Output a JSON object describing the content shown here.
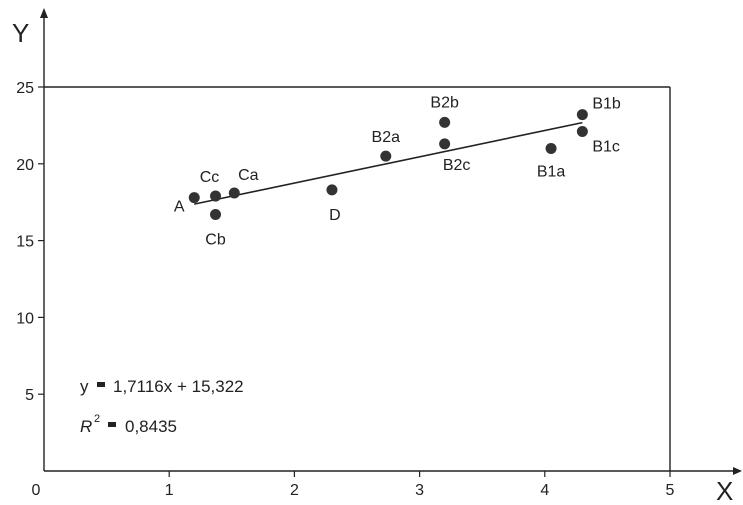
{
  "chart_data": {
    "type": "scatter",
    "xlabel": "X",
    "ylabel": "Y",
    "xlim": [
      0,
      5
    ],
    "ylim": [
      0,
      25
    ],
    "x_ticks": [
      "0",
      "1",
      "2",
      "3",
      "4",
      "5"
    ],
    "y_ticks": [
      "5",
      "10",
      "15",
      "20",
      "25"
    ],
    "grid": false,
    "points": [
      {
        "label": "A",
        "x": 1.2,
        "y": 17.8
      },
      {
        "label": "Cc",
        "x": 1.37,
        "y": 17.9
      },
      {
        "label": "Ca",
        "x": 1.52,
        "y": 18.1
      },
      {
        "label": "Cb",
        "x": 1.37,
        "y": 16.7
      },
      {
        "label": "D",
        "x": 2.3,
        "y": 18.3
      },
      {
        "label": "B2a",
        "x": 2.73,
        "y": 20.5
      },
      {
        "label": "B2b",
        "x": 3.2,
        "y": 22.7
      },
      {
        "label": "B2c",
        "x": 3.2,
        "y": 21.3
      },
      {
        "label": "B1a",
        "x": 4.05,
        "y": 21.0
      },
      {
        "label": "B1b",
        "x": 4.3,
        "y": 23.2
      },
      {
        "label": "B1c",
        "x": 4.3,
        "y": 22.1
      }
    ],
    "trendline": {
      "slope": 1.7116,
      "intercept": 15.322,
      "x_range": [
        1.2,
        4.3
      ]
    },
    "equation": {
      "prefix": "y",
      "rhs": "1,7116x + 15,322",
      "r2_symbol": "R",
      "r2_exponent": "2",
      "r2_value": "0,8435"
    }
  }
}
